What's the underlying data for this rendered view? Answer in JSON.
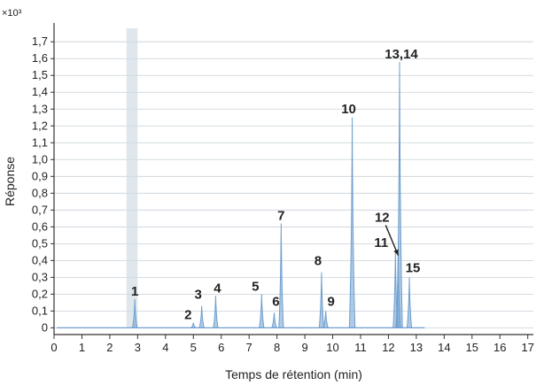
{
  "chart_data": {
    "type": "line",
    "xlabel": "Temps de rétention (min)",
    "ylabel": "Réponse",
    "y_multiplier_label": "×10³",
    "xlim": [
      0,
      17.2
    ],
    "ylim": [
      -0.04,
      1.78
    ],
    "x_ticks": [
      "0",
      "1",
      "2",
      "3",
      "4",
      "5",
      "6",
      "7",
      "8",
      "9",
      "10",
      "11",
      "12",
      "13",
      "14",
      "15",
      "16",
      "17"
    ],
    "y_ticks": [
      "0",
      "0,1",
      "0,2",
      "0,3",
      "0,4",
      "0,5",
      "0,6",
      "0,7",
      "0,8",
      "0,9",
      "1,0",
      "1,1",
      "1,2",
      "1,3",
      "1,4",
      "1,5",
      "1,6",
      "1,7"
    ],
    "grid": "horizontal",
    "line_color": "#6e9fcf",
    "highlight_band_color": "#d2dde6",
    "highlight_band": [
      2.6,
      3.0
    ],
    "baseline_y": 0.0,
    "peaks": [
      {
        "label": "1",
        "rt": 2.9,
        "height": 0.17
      },
      {
        "label": "2",
        "rt": 5.0,
        "height": 0.03
      },
      {
        "label": "3",
        "rt": 5.3,
        "height": 0.13
      },
      {
        "label": "4",
        "rt": 5.8,
        "height": 0.19
      },
      {
        "label": "5",
        "rt": 7.45,
        "height": 0.2
      },
      {
        "label": "6",
        "rt": 7.9,
        "height": 0.09
      },
      {
        "label": "7",
        "rt": 8.15,
        "height": 0.62
      },
      {
        "label": "8",
        "rt": 9.6,
        "height": 0.33
      },
      {
        "label": "9",
        "rt": 9.75,
        "height": 0.1
      },
      {
        "label": "10",
        "rt": 10.7,
        "height": 1.25
      },
      {
        "label": "11",
        "rt": 12.25,
        "height": 0.45
      },
      {
        "label": "12",
        "rt": 12.35,
        "height": 0.43
      },
      {
        "label": "13,14",
        "rt": 12.4,
        "height": 1.58
      },
      {
        "label": "15",
        "rt": 12.75,
        "height": 0.3
      }
    ],
    "annotation_arrow": {
      "label": "12",
      "from_x": 11.9,
      "from_y": 0.61,
      "to_x": 12.35,
      "to_y": 0.43
    }
  }
}
